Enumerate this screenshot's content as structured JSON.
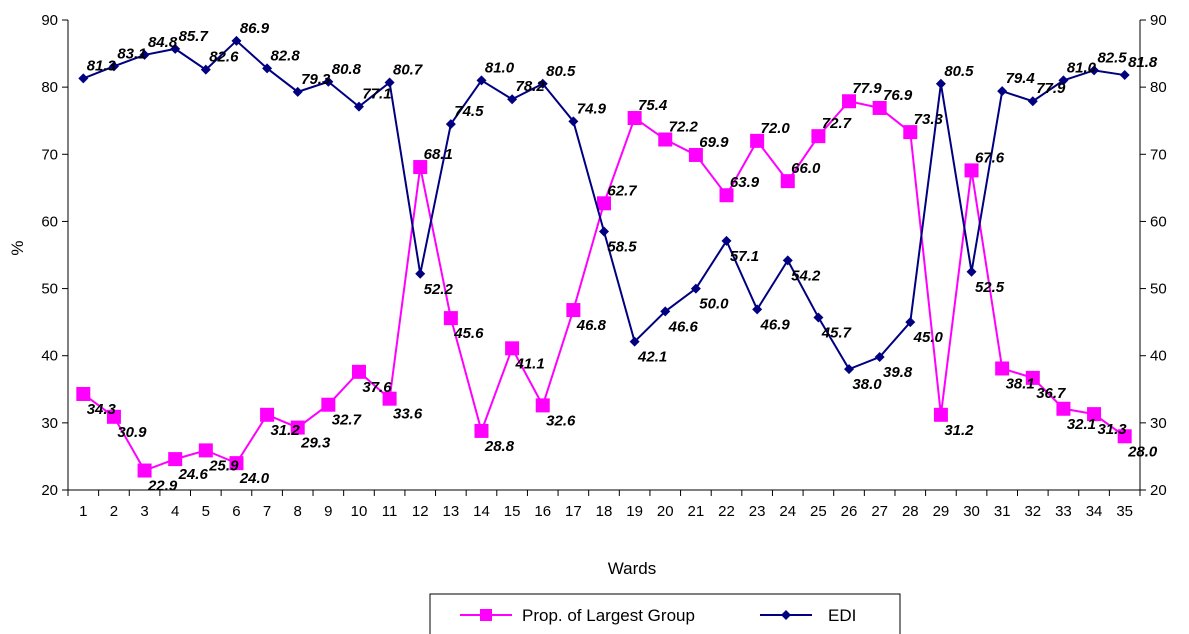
{
  "chart_data": {
    "type": "line",
    "xlabel": "Wards",
    "ylabel": "%",
    "ylim": [
      20,
      90
    ],
    "yticks": [
      20,
      30,
      40,
      50,
      60,
      70,
      80,
      90
    ],
    "y2lim": [
      20,
      90
    ],
    "categories": [
      "1",
      "2",
      "3",
      "4",
      "5",
      "6",
      "7",
      "8",
      "9",
      "10",
      "11",
      "12",
      "13",
      "14",
      "15",
      "16",
      "17",
      "18",
      "19",
      "20",
      "21",
      "22",
      "23",
      "24",
      "25",
      "26",
      "27",
      "28",
      "29",
      "30",
      "31",
      "32",
      "33",
      "34",
      "35"
    ],
    "series": [
      {
        "name": "Prop. of Largest Group",
        "color": "#ff00ff",
        "marker": "square",
        "values": [
          34.3,
          30.9,
          22.9,
          24.6,
          25.9,
          24.0,
          31.2,
          29.3,
          32.7,
          37.6,
          33.6,
          68.1,
          45.6,
          28.8,
          41.1,
          32.6,
          46.8,
          62.7,
          75.4,
          72.2,
          69.9,
          63.9,
          72.0,
          66.0,
          72.7,
          77.9,
          76.9,
          73.3,
          31.2,
          67.6,
          38.1,
          36.7,
          32.1,
          31.3,
          28.0
        ]
      },
      {
        "name": "EDI",
        "color": "#000080",
        "marker": "diamond",
        "values": [
          81.3,
          83.1,
          84.8,
          85.7,
          82.6,
          86.9,
          82.8,
          79.3,
          80.8,
          77.1,
          80.7,
          52.2,
          74.5,
          81.0,
          78.2,
          80.5,
          74.9,
          58.5,
          42.1,
          46.6,
          50.0,
          57.1,
          46.9,
          54.2,
          45.7,
          38.0,
          39.8,
          45.0,
          80.5,
          52.5,
          79.4,
          77.9,
          81.0,
          82.5,
          81.8
        ]
      }
    ],
    "legend": "bottom-center"
  }
}
